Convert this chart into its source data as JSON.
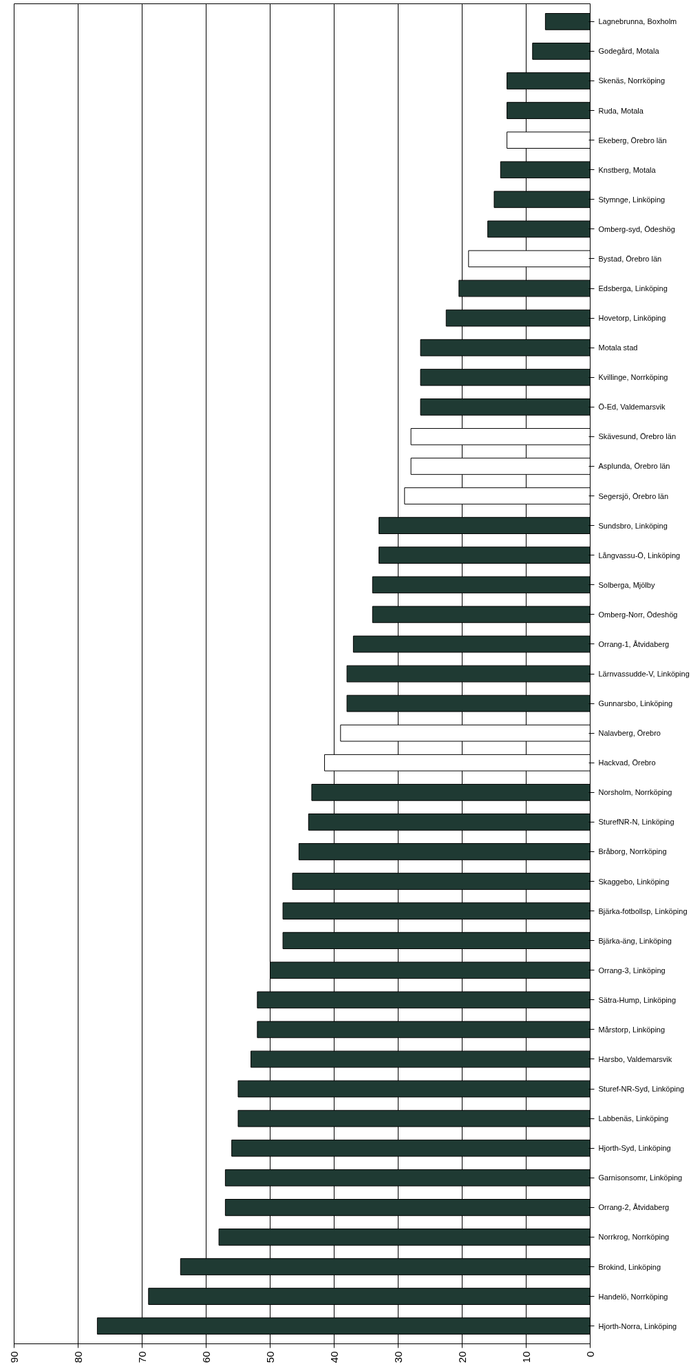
{
  "chart_data": {
    "type": "bar",
    "orientation": "horizontal",
    "categories": [
      "Lagnebrunna, Boxholm",
      "Godegård, Motala",
      "Skenäs, Norrköping",
      "Ruda, Motala",
      "Ekeberg, Örebro län",
      "Knstberg, Motala",
      "Stymnge, Linköping",
      "Omberg-syd, Ödeshög",
      "Bystad, Örebro län",
      "Edsberga, Linköping",
      "Hovetorp, Linköping",
      "Motala stad",
      "Kvillinge, Norrköping",
      "Ö-Ed, Valdemarsvik",
      "Skävesund, Örebro län",
      "Asplunda, Örebro län",
      "Segersjö, Örebro län",
      "Sundsbro, Linköping",
      "Långvassu-Ö, Linköping",
      "Solberga, Mjölby",
      "Omberg-Norr, Ödeshög",
      "Orrang-1, Åtvidaberg",
      "Lärnvassudde-V, Linköping",
      "Gunnarsbo, Linköping",
      "Nalavberg, Örebro",
      "Hackvad, Örebro",
      "Norsholm, Norrköping",
      "SturefNR-N, Linköping",
      "Bråborg, Norrköping",
      "Skaggebo, Linköping",
      "Bjärka-fotbollsp, Linköping",
      "Bjärka-äng, Linköping",
      "Orrang-3, Linköping",
      "Sätra-Hump, Linköping",
      "Mårstorp, Linköping",
      "Harsbo, Valdemarsvik",
      "Sturef-NR-Syd, Linköping",
      "Labbenäs, Linköping",
      "Hjorth-Syd, Linköping",
      "Garnisonsomr, Linköping",
      "Orrang-2, Åtvidaberg",
      "Norrkrog, Norrköping",
      "Brokind, Linköping",
      "Handelö, Norrköping",
      "Hjorth-Norra, Linköping"
    ],
    "values": [
      7,
      9,
      13,
      13,
      13,
      14,
      15,
      16,
      19,
      20.5,
      22.5,
      26.5,
      26.5,
      26.5,
      28,
      28,
      29,
      33,
      33,
      34,
      34,
      37,
      38,
      38,
      39,
      41.5,
      43.5,
      44,
      45.5,
      46.5,
      48,
      48,
      50,
      52,
      52,
      53,
      55,
      55,
      56,
      57,
      57,
      58,
      64,
      69,
      77
    ],
    "colors": [
      "#1f3a33",
      "#1f3a33",
      "#1f3a33",
      "#1f3a33",
      "#ffffff",
      "#1f3a33",
      "#1f3a33",
      "#1f3a33",
      "#ffffff",
      "#1f3a33",
      "#1f3a33",
      "#1f3a33",
      "#1f3a33",
      "#1f3a33",
      "#ffffff",
      "#ffffff",
      "#ffffff",
      "#1f3a33",
      "#1f3a33",
      "#1f3a33",
      "#1f3a33",
      "#1f3a33",
      "#1f3a33",
      "#1f3a33",
      "#ffffff",
      "#ffffff",
      "#1f3a33",
      "#1f3a33",
      "#1f3a33",
      "#1f3a33",
      "#1f3a33",
      "#1f3a33",
      "#1f3a33",
      "#1f3a33",
      "#1f3a33",
      "#1f3a33",
      "#1f3a33",
      "#1f3a33",
      "#1f3a33",
      "#1f3a33",
      "#1f3a33",
      "#1f3a33",
      "#1f3a33",
      "#1f3a33",
      "#1f3a33"
    ],
    "xlim": [
      90,
      0
    ],
    "xticks": [
      0,
      10,
      20,
      30,
      40,
      50,
      60,
      70,
      80,
      90
    ],
    "grid": "x"
  }
}
